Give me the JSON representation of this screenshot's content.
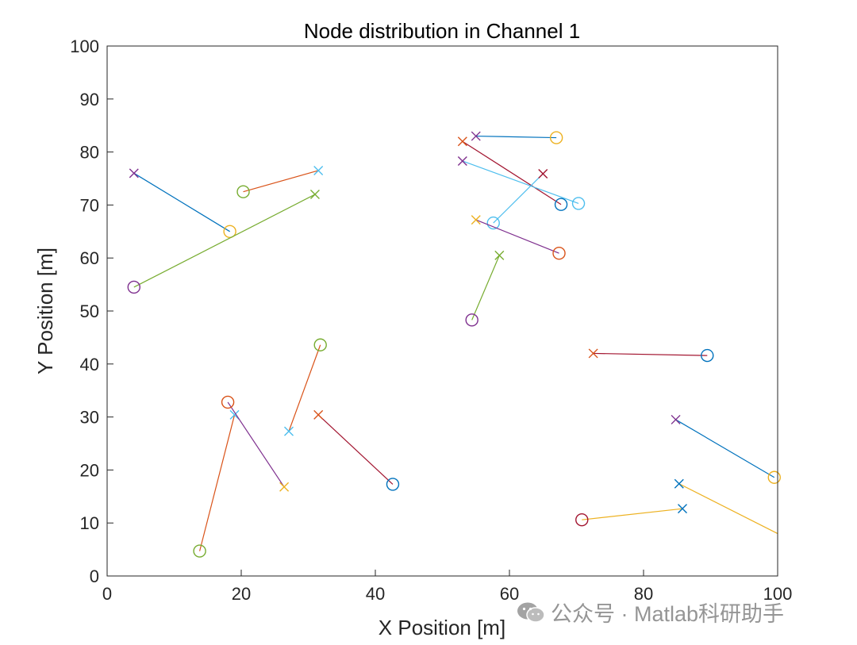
{
  "chart_data": {
    "type": "scatter",
    "title": "Node distribution in Channel 1",
    "xlabel": "X Position [m]",
    "ylabel": "Y Position [m]",
    "xlim": [
      0,
      100
    ],
    "ylim": [
      0,
      100
    ],
    "xticks": [
      0,
      20,
      40,
      60,
      80,
      100
    ],
    "yticks": [
      0,
      10,
      20,
      30,
      40,
      50,
      60,
      70,
      80,
      90,
      100
    ],
    "xtick_labels": [
      "0",
      "20",
      "40",
      "60",
      "80",
      "100"
    ],
    "ytick_labels": [
      "0",
      "10",
      "20",
      "30",
      "40",
      "50",
      "60",
      "70",
      "80",
      "90",
      "100"
    ],
    "grid": false,
    "legend": "none",
    "pairs": [
      {
        "cross": [
          4,
          76
        ],
        "circle": [
          18.3,
          65
        ],
        "cross_color": "#7E2F8E",
        "line_color": "#0072BD",
        "circle_color": "#EDB120"
      },
      {
        "cross": [
          31.5,
          76.5
        ],
        "circle": [
          20.3,
          72.5
        ],
        "cross_color": "#4DBEEE",
        "line_color": "#D95319",
        "circle_color": "#77AC30"
      },
      {
        "cross": [
          31,
          72
        ],
        "circle": [
          4,
          54.5
        ],
        "cross_color": "#77AC30",
        "line_color": "#77AC30",
        "circle_color": "#7E2F8E"
      },
      {
        "cross": [
          55,
          83
        ],
        "circle": [
          67,
          82.7
        ],
        "cross_color": "#7E2F8E",
        "line_color": "#0072BD",
        "circle_color": "#EDB120"
      },
      {
        "cross": [
          53,
          82
        ],
        "circle": [
          67.7,
          70.1
        ],
        "cross_color": "#D95319",
        "line_color": "#A2142F",
        "circle_color": "#0072BD"
      },
      {
        "cross": [
          53,
          78.3
        ],
        "circle": [
          70.3,
          70.3
        ],
        "cross_color": "#7E2F8E",
        "line_color": "#4DBEEE",
        "circle_color": "#4DBEEE"
      },
      {
        "cross": [
          65,
          75.9
        ],
        "circle": [
          57.6,
          66.6
        ],
        "cross_color": "#A2142F",
        "line_color": "#4DBEEE",
        "circle_color": "#4DBEEE"
      },
      {
        "cross": [
          55,
          67.2
        ],
        "circle": [
          67.4,
          60.9
        ],
        "cross_color": "#EDB120",
        "line_color": "#7E2F8E",
        "circle_color": "#D95319"
      },
      {
        "cross": [
          58.5,
          60.5
        ],
        "circle": [
          54.4,
          48.3
        ],
        "cross_color": "#77AC30",
        "line_color": "#77AC30",
        "circle_color": "#7E2F8E"
      },
      {
        "cross": [
          72.5,
          42
        ],
        "circle": [
          89.5,
          41.6
        ],
        "cross_color": "#D95319",
        "line_color": "#A2142F",
        "circle_color": "#0072BD"
      },
      {
        "cross": [
          84.8,
          29.5
        ],
        "circle": [
          99.5,
          18.6
        ],
        "cross_color": "#7E2F8E",
        "line_color": "#0072BD",
        "circle_color": "#EDB120"
      },
      {
        "cross": [
          85.3,
          17.4
        ],
        "circle": [
          100,
          8
        ],
        "cross_color": "#0072BD",
        "line_color": "#EDB120",
        "circle_color": null
      },
      {
        "cross": [
          85.8,
          12.7
        ],
        "circle": [
          70.8,
          10.6
        ],
        "cross_color": "#0072BD",
        "line_color": "#EDB120",
        "circle_color": "#A2142F"
      },
      {
        "cross": [
          31.5,
          30.4
        ],
        "circle": [
          42.6,
          17.3
        ],
        "cross_color": "#D95319",
        "line_color": "#A2142F",
        "circle_color": "#0072BD"
      },
      {
        "cross": [
          27.1,
          27.3
        ],
        "circle": [
          31.8,
          43.6
        ],
        "cross_color": "#4DBEEE",
        "line_color": "#D95319",
        "circle_color": "#77AC30"
      },
      {
        "cross": [
          19,
          30.4
        ],
        "circle": [
          13.8,
          4.7
        ],
        "cross_color": "#4DBEEE",
        "line_color": "#D95319",
        "circle_color": "#77AC30"
      },
      {
        "cross": [
          26.4,
          16.8
        ],
        "circle": [
          18,
          32.8
        ],
        "cross_color": "#EDB120",
        "line_color": "#7E2F8E",
        "circle_color": "#D95319"
      }
    ]
  },
  "watermark": {
    "text": "公众号 · Matlab科研助手",
    "icon": "wechat-icon"
  }
}
